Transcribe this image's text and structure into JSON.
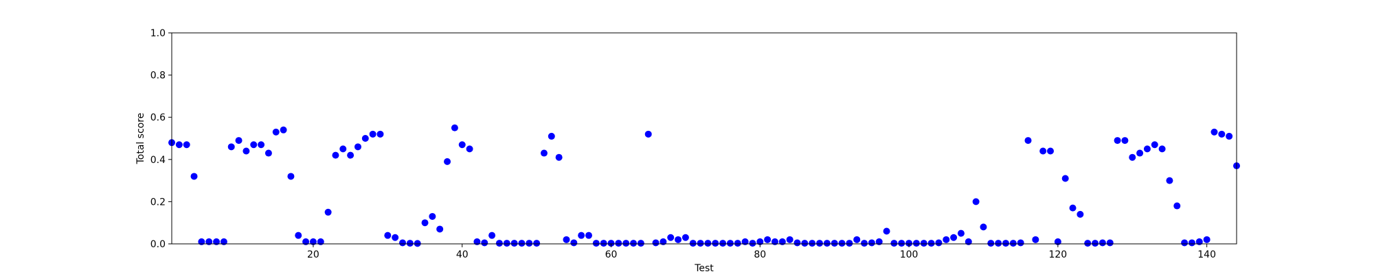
{
  "chart_data": {
    "type": "scatter",
    "title": "",
    "xlabel": "Test",
    "ylabel": "Total score",
    "xlim": [
      1,
      144
    ],
    "ylim": [
      0.0,
      1.0
    ],
    "xticks": [
      20,
      40,
      60,
      80,
      100,
      120,
      140
    ],
    "yticks": [
      0.0,
      0.2,
      0.4,
      0.6,
      0.8,
      1.0
    ],
    "xtick_labels": [
      "20",
      "40",
      "60",
      "80",
      "100",
      "120",
      "140"
    ],
    "ytick_labels": [
      "0.0",
      "0.2",
      "0.4",
      "0.6",
      "0.8",
      "1.0"
    ],
    "grid": false,
    "marker_color": "#0000ff",
    "series": [
      {
        "x": [
          1,
          2,
          3,
          4,
          5,
          6,
          7,
          8,
          9,
          10,
          11,
          12,
          13,
          14,
          15,
          16,
          17,
          18,
          19,
          20,
          21,
          22,
          23,
          24,
          25,
          26,
          27,
          28,
          29,
          30,
          31,
          32,
          33,
          34,
          35,
          36,
          37,
          38,
          39,
          40,
          41,
          42,
          43,
          44,
          45,
          46,
          47,
          48,
          49,
          50,
          51,
          52,
          53,
          54,
          55,
          56,
          57,
          58,
          59,
          60,
          61,
          62,
          63,
          64,
          65,
          66,
          67,
          68,
          69,
          70,
          71,
          72,
          73,
          74,
          75,
          76,
          77,
          78,
          79,
          80,
          81,
          82,
          83,
          84,
          85,
          86,
          87,
          88,
          89,
          90,
          91,
          92,
          93,
          94,
          95,
          96,
          97,
          98,
          99,
          100,
          101,
          102,
          103,
          104,
          105,
          106,
          107,
          108,
          109,
          110,
          111,
          112,
          113,
          114,
          115,
          116,
          117,
          118,
          119,
          120,
          121,
          122,
          123,
          124,
          125,
          126,
          127,
          128,
          129,
          130,
          131,
          132,
          133,
          134,
          135,
          136,
          137,
          138,
          139,
          140,
          141,
          142,
          143,
          144
        ],
        "y": [
          0.48,
          0.47,
          0.47,
          0.32,
          0.01,
          0.01,
          0.01,
          0.01,
          0.46,
          0.49,
          0.44,
          0.47,
          0.47,
          0.43,
          0.53,
          0.54,
          0.32,
          0.04,
          0.01,
          0.01,
          0.01,
          0.15,
          0.42,
          0.45,
          0.42,
          0.46,
          0.5,
          0.52,
          0.52,
          0.04,
          0.03,
          0.005,
          0.003,
          0.002,
          0.1,
          0.13,
          0.07,
          0.39,
          0.55,
          0.47,
          0.45,
          0.01,
          0.005,
          0.04,
          0.003,
          0.003,
          0.003,
          0.003,
          0.003,
          0.003,
          0.43,
          0.51,
          0.41,
          0.02,
          0.005,
          0.04,
          0.04,
          0.003,
          0.003,
          0.003,
          0.003,
          0.003,
          0.003,
          0.003,
          0.52,
          0.005,
          0.01,
          0.03,
          0.02,
          0.03,
          0.003,
          0.003,
          0.003,
          0.003,
          0.003,
          0.003,
          0.003,
          0.01,
          0.003,
          0.01,
          0.02,
          0.01,
          0.01,
          0.02,
          0.005,
          0.003,
          0.003,
          0.003,
          0.003,
          0.003,
          0.003,
          0.003,
          0.02,
          0.003,
          0.005,
          0.01,
          0.06,
          0.003,
          0.003,
          0.003,
          0.003,
          0.003,
          0.003,
          0.005,
          0.02,
          0.03,
          0.05,
          0.01,
          0.2,
          0.08,
          0.003,
          0.003,
          0.003,
          0.003,
          0.005,
          0.49,
          0.02,
          0.44,
          0.44,
          0.01,
          0.31,
          0.17,
          0.14,
          0.003,
          0.003,
          0.005,
          0.005,
          0.49,
          0.49,
          0.41,
          0.43,
          0.45,
          0.47,
          0.45,
          0.3,
          0.18,
          0.005,
          0.005,
          0.01,
          0.02,
          0.53,
          0.52,
          0.51,
          0.37
        ]
      }
    ]
  }
}
